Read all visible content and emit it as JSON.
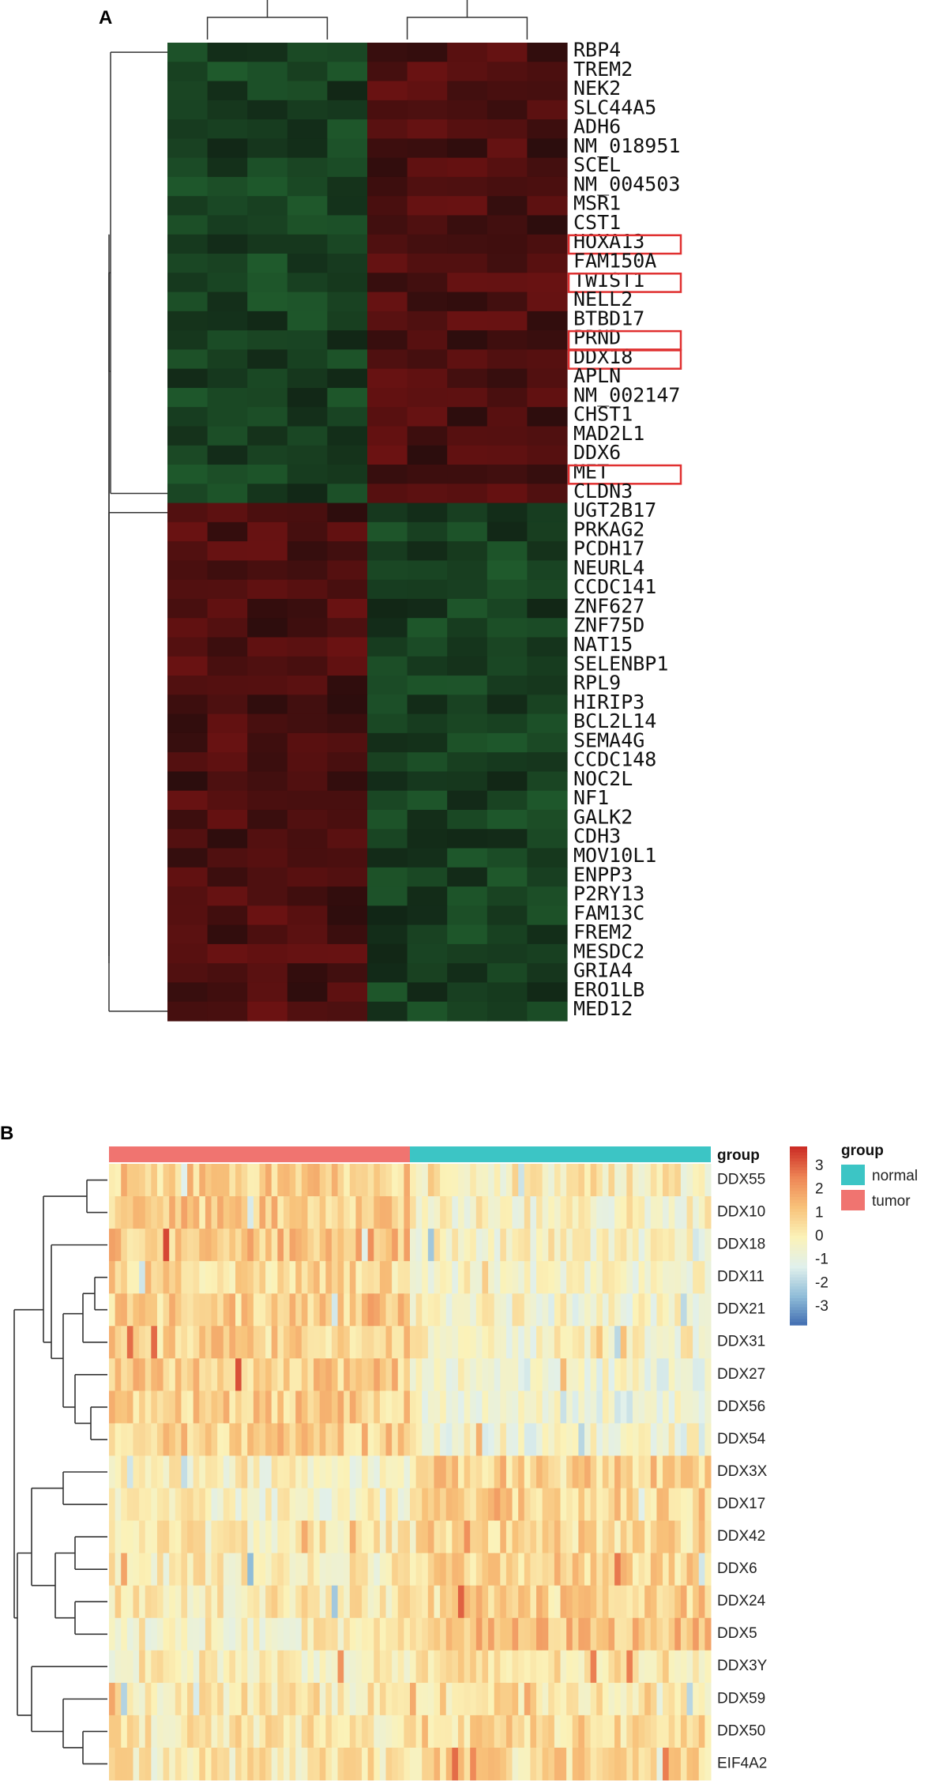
{
  "chart_data": [
    {
      "type": "heatmap",
      "panel": "A",
      "n_group1_samples": 5,
      "n_group2_samples": 5,
      "colors": {
        "low": "#1f5a2c",
        "mid": "#0a0a0a",
        "high": "#6b1212",
        "highlight_box": "#e03030"
      },
      "rows": [
        "RBP4",
        "TREM2",
        "NEK2",
        "SLC44A5",
        "ADH6",
        "NM_018951",
        "SCEL",
        "NM_004503",
        "MSR1",
        "CST1",
        "HOXA13",
        "FAM150A",
        "TWIST1",
        "NELL2",
        "BTBD17",
        "PRND",
        "DDX18",
        "APLN",
        "NM_002147",
        "CHST1",
        "MAD2L1",
        "DDX6",
        "MET",
        "CLDN3",
        "UGT2B17",
        "PRKAG2",
        "PCDH17",
        "NEURL4",
        "CCDC141",
        "ZNF627",
        "ZNF75D",
        "NAT15",
        "SELENBP1",
        "RPL9",
        "HIRIP3",
        "BCL2L14",
        "SEMA4G",
        "CCDC148",
        "NOC2L",
        "NF1",
        "GALK2",
        "CDH3",
        "MOV10L1",
        "ENPP3",
        "P2RY13",
        "FAM13C",
        "FREM2",
        "MESDC2",
        "GRIA4",
        "ERO1LB",
        "MED12"
      ],
      "highlighted_genes": [
        "HOXA13",
        "TWIST1",
        "PRND",
        "DDX18",
        "MET"
      ],
      "upper_block_size": 24
    },
    {
      "type": "heatmap",
      "panel": "B",
      "rows": [
        "DDX55",
        "DDX10",
        "DDX18",
        "DDX11",
        "DDX21",
        "DDX31",
        "DDX27",
        "DDX56",
        "DDX54",
        "DDX3X",
        "DDX17",
        "DDX42",
        "DDX6",
        "DDX24",
        "DDX5",
        "DDX3Y",
        "DDX59",
        "DDX50",
        "EIF4A2"
      ],
      "n_tumor_samples": 50,
      "n_normal_samples": 50,
      "annotation_title": "group",
      "legend_title": "group",
      "groups": [
        {
          "name": "normal",
          "color": "#3cc5c5"
        },
        {
          "name": "tumor",
          "color": "#f07470"
        }
      ],
      "color_scale": {
        "ticks": [
          "3",
          "2",
          "1",
          "0",
          "-1",
          "-2",
          "-3"
        ],
        "tick_values": [
          3,
          2,
          1,
          0,
          -1,
          -2,
          -3
        ],
        "range": [
          -3.8,
          3.8
        ],
        "colors": [
          "#3f6bb0",
          "#8fbcd8",
          "#e0f0ec",
          "#fbf2b8",
          "#f8c27a",
          "#ee8656",
          "#cc2e26"
        ]
      },
      "mean_z": [
        {
          "gene": "DDX55",
          "tumor": 0.9,
          "normal": 0.0
        },
        {
          "gene": "DDX10",
          "tumor": 1.0,
          "normal": -0.2
        },
        {
          "gene": "DDX18",
          "tumor": 1.1,
          "normal": -0.2
        },
        {
          "gene": "DDX11",
          "tumor": 0.7,
          "normal": -0.3
        },
        {
          "gene": "DDX21",
          "tumor": 0.9,
          "normal": -0.4
        },
        {
          "gene": "DDX31",
          "tumor": 0.8,
          "normal": -0.3
        },
        {
          "gene": "DDX27",
          "tumor": 1.0,
          "normal": -0.6
        },
        {
          "gene": "DDX56",
          "tumor": 0.9,
          "normal": -0.7
        },
        {
          "gene": "DDX54",
          "tumor": 0.9,
          "normal": -0.5
        },
        {
          "gene": "DDX3X",
          "tumor": -0.2,
          "normal": 0.9
        },
        {
          "gene": "DDX17",
          "tumor": -0.3,
          "normal": 0.8
        },
        {
          "gene": "DDX42",
          "tumor": 0.1,
          "normal": 0.7
        },
        {
          "gene": "DDX6",
          "tumor": 0.0,
          "normal": 0.8
        },
        {
          "gene": "DDX24",
          "tumor": 0.1,
          "normal": 0.9
        },
        {
          "gene": "DDX5",
          "tumor": -0.1,
          "normal": 1.2
        },
        {
          "gene": "DDX3Y",
          "tumor": 0.0,
          "normal": 0.3
        },
        {
          "gene": "DDX59",
          "tumor": 0.2,
          "normal": 0.4
        },
        {
          "gene": "DDX50",
          "tumor": 0.2,
          "normal": 0.6
        },
        {
          "gene": "EIF4A2",
          "tumor": 0.2,
          "normal": 0.7
        }
      ]
    }
  ],
  "labels": {
    "panel_a": "A",
    "panel_b": "B"
  }
}
